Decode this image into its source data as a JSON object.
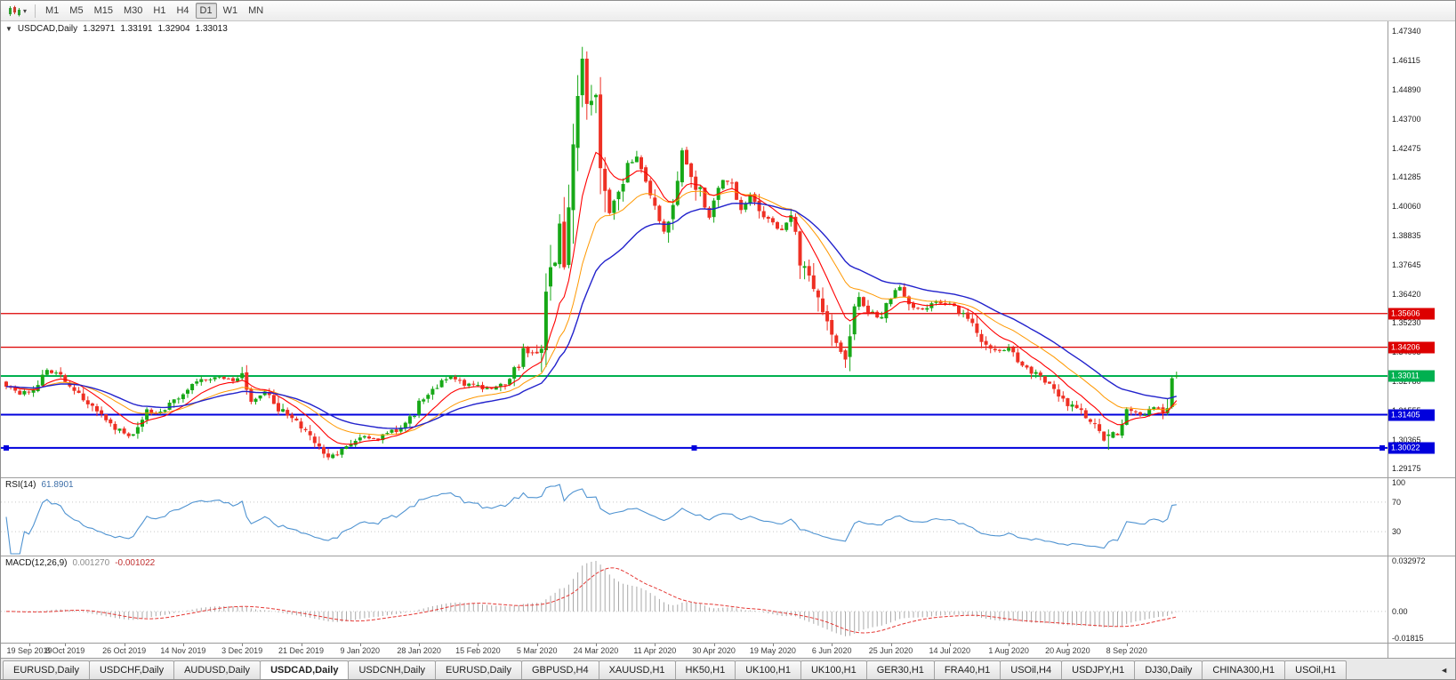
{
  "toolbar": {
    "timeframes": [
      "M1",
      "M5",
      "M15",
      "M30",
      "H1",
      "H4",
      "D1",
      "W1",
      "MN"
    ],
    "active_timeframe": "D1"
  },
  "icons": {
    "one_click_trading": "▼",
    "dropdown_caret": "▾",
    "tab_scroll_left": "◄"
  },
  "chart": {
    "type": "candlestick",
    "symbol": "USDCAD,Daily",
    "ohlc": {
      "open": "1.32971",
      "high": "1.33191",
      "low": "1.32904",
      "close": "1.33013"
    },
    "price_range": {
      "min": 1.288,
      "max": 1.4775
    },
    "price_scale_labels": [
      "1.47340",
      "1.46115",
      "1.44890",
      "1.43700",
      "1.42475",
      "1.41285",
      "1.40060",
      "1.38835",
      "1.37645",
      "1.36420",
      "1.35230",
      "1.34005",
      "1.32780",
      "1.31555",
      "1.30365",
      "1.29175"
    ],
    "hlines": [
      {
        "price": 1.35606,
        "label": "1.35606",
        "color": "#dd0000",
        "width": 1.3
      },
      {
        "price": 1.34206,
        "label": "1.34206",
        "color": "#dd0000",
        "width": 1.3
      },
      {
        "price": 1.33011,
        "label": "1.33011",
        "color": "#00b050",
        "width": 2
      },
      {
        "price": 1.31405,
        "label": "1.31405",
        "color": "#0000dd",
        "width": 2
      },
      {
        "price": 1.30022,
        "label": "1.30022",
        "color": "#0000dd",
        "width": 2,
        "selected": true
      }
    ],
    "date_labels": [
      "19 Sep 2019",
      "8 Oct 2019",
      "26 Oct 2019",
      "14 Nov 2019",
      "3 Dec 2019",
      "21 Dec 2019",
      "9 Jan 2020",
      "28 Jan 2020",
      "15 Feb 2020",
      "5 Mar 2020",
      "24 Mar 2020",
      "11 Apr 2020",
      "30 Apr 2020",
      "19 May 2020",
      "6 Jun 2020",
      "25 Jun 2020",
      "14 Jul 2020",
      "1 Aug 2020",
      "20 Aug 2020",
      "8 Sep 2020"
    ],
    "label_every_n_candles": 13,
    "candle_count": 259,
    "anchors": [
      [
        0,
        1.3262
      ],
      [
        3,
        1.3228
      ],
      [
        6,
        1.3248
      ],
      [
        9,
        1.3325
      ],
      [
        12,
        1.3308
      ],
      [
        16,
        1.323
      ],
      [
        20,
        1.315
      ],
      [
        24,
        1.3085
      ],
      [
        27,
        1.3048
      ],
      [
        29,
        1.3092
      ],
      [
        31,
        1.3168
      ],
      [
        33,
        1.314
      ],
      [
        36,
        1.3185
      ],
      [
        39,
        1.3235
      ],
      [
        43,
        1.3285
      ],
      [
        47,
        1.3302
      ],
      [
        50,
        1.3282
      ],
      [
        52,
        1.3312
      ],
      [
        54,
        1.3185
      ],
      [
        57,
        1.3235
      ],
      [
        60,
        1.3165
      ],
      [
        63,
        1.3128
      ],
      [
        66,
        1.3078
      ],
      [
        69,
        1.2995
      ],
      [
        71,
        1.2962
      ],
      [
        74,
        1.2988
      ],
      [
        78,
        1.3048
      ],
      [
        82,
        1.3042
      ],
      [
        86,
        1.3078
      ],
      [
        89,
        1.3122
      ],
      [
        91,
        1.3182
      ],
      [
        94,
        1.3252
      ],
      [
        98,
        1.3298
      ],
      [
        101,
        1.3268
      ],
      [
        104,
        1.3258
      ],
      [
        107,
        1.3242
      ],
      [
        110,
        1.3278
      ],
      [
        113,
        1.3348
      ],
      [
        114,
        1.3402
      ],
      [
        115,
        1.3382
      ],
      [
        117,
        1.3428
      ],
      [
        118,
        1.3458
      ],
      [
        119,
        1.3672
      ],
      [
        120,
        1.3742
      ],
      [
        121,
        1.3788
      ],
      [
        122,
        1.3925
      ],
      [
        123,
        1.3802
      ],
      [
        124,
        1.3988
      ],
      [
        125,
        1.4228
      ],
      [
        126,
        1.4492
      ],
      [
        127,
        1.462
      ],
      [
        128,
        1.4432
      ],
      [
        129,
        1.4455
      ],
      [
        130,
        1.444
      ],
      [
        131,
        1.4188
      ],
      [
        132,
        1.4032
      ],
      [
        133,
        1.3992
      ],
      [
        135,
        1.4068
      ],
      [
        137,
        1.4172
      ],
      [
        139,
        1.4198
      ],
      [
        141,
        1.4088
      ],
      [
        143,
        1.4022
      ],
      [
        145,
        1.3902
      ],
      [
        147,
        1.4012
      ],
      [
        149,
        1.4222
      ],
      [
        151,
        1.4128
      ],
      [
        153,
        1.4062
      ],
      [
        155,
        1.3962
      ],
      [
        156,
        1.4042
      ],
      [
        158,
        1.4122
      ],
      [
        160,
        1.4088
      ],
      [
        162,
        1.3988
      ],
      [
        164,
        1.4052
      ],
      [
        166,
        1.3978
      ],
      [
        169,
        1.3928
      ],
      [
        171,
        1.3898
      ],
      [
        173,
        1.3988
      ],
      [
        175,
        1.3782
      ],
      [
        177,
        1.3742
      ],
      [
        179,
        1.3622
      ],
      [
        181,
        1.3512
      ],
      [
        183,
        1.3422
      ],
      [
        185,
        1.3368
      ],
      [
        186,
        1.3492
      ],
      [
        188,
        1.3622
      ],
      [
        190,
        1.3565
      ],
      [
        193,
        1.3538
      ],
      [
        195,
        1.3635
      ],
      [
        197,
        1.3665
      ],
      [
        199,
        1.3598
      ],
      [
        202,
        1.3572
      ],
      [
        205,
        1.3612
      ],
      [
        208,
        1.3595
      ],
      [
        211,
        1.3562
      ],
      [
        213,
        1.3518
      ],
      [
        215,
        1.3455
      ],
      [
        218,
        1.3402
      ],
      [
        221,
        1.3412
      ],
      [
        223,
        1.3372
      ],
      [
        226,
        1.3322
      ],
      [
        229,
        1.3282
      ],
      [
        232,
        1.3228
      ],
      [
        234,
        1.3182
      ],
      [
        237,
        1.3152
      ],
      [
        240,
        1.3098
      ],
      [
        242,
        1.3042
      ],
      [
        244,
        1.3058
      ],
      [
        246,
        1.3082
      ],
      [
        247,
        1.3175
      ],
      [
        249,
        1.3148
      ],
      [
        251,
        1.3142
      ],
      [
        253,
        1.3172
      ],
      [
        255,
        1.3162
      ],
      [
        256,
        1.3185
      ],
      [
        257,
        1.3292
      ],
      [
        258,
        1.33013
      ]
    ],
    "key_candles": [
      {
        "i": 71,
        "o": 1.2979,
        "h": 1.2999,
        "l": 1.2952,
        "c": 1.2963
      },
      {
        "i": 127,
        "o": 1.4468,
        "h": 1.4669,
        "l": 1.4418,
        "c": 1.462
      },
      {
        "i": 128,
        "o": 1.462,
        "h": 1.465,
        "l": 1.4366,
        "c": 1.4432
      },
      {
        "i": 243,
        "o": 1.3052,
        "h": 1.3079,
        "l": 1.2994,
        "c": 1.3058
      },
      {
        "i": 257,
        "o": 1.3172,
        "h": 1.3302,
        "l": 1.3165,
        "c": 1.3292
      },
      {
        "i": 258,
        "o": 1.32971,
        "h": 1.33191,
        "l": 1.32904,
        "c": 1.33013
      }
    ],
    "moving_averages": [
      {
        "period": 21,
        "color": "#ff9800",
        "width": 1
      },
      {
        "period": 10,
        "color": "#ff0000",
        "width": 1.1
      },
      {
        "period": 34,
        "color": "#2222cc",
        "width": 1.4
      }
    ],
    "colors": {
      "bull": "#17a817",
      "bear": "#ee3024"
    }
  },
  "rsi": {
    "label": "RSI(14)",
    "value": "61.8901",
    "period": 14,
    "color": "#4f93d1",
    "levels": [
      {
        "label": "100",
        "value": 100
      },
      {
        "label": "70",
        "value": 70
      },
      {
        "label": "30",
        "value": 30
      }
    ],
    "level_line_values": [
      70,
      30
    ]
  },
  "macd": {
    "label": "MACD(12,26,9)",
    "value_main": "0.001270",
    "value_signal": "-0.001022",
    "fast": 12,
    "slow": 26,
    "signal": 9,
    "range": {
      "min": -0.0185,
      "max": 0.0335
    },
    "scale_labels": [
      {
        "label": "0.032972",
        "value": 0.032972
      },
      {
        "label": "0.00",
        "value": 0
      },
      {
        "label": "-0.01815",
        "value": -0.01815
      }
    ],
    "hist_color": "#a9a9a9",
    "signal_color": "#e53935"
  },
  "tabs": {
    "items": [
      "EURUSD,Daily",
      "USDCHF,Daily",
      "AUDUSD,Daily",
      "USDCAD,Daily",
      "USDCNH,Daily",
      "EURUSD,Daily",
      "GBPUSD,H4",
      "XAUUSD,H1",
      "HK50,H1",
      "UK100,H1",
      "UK100,H1",
      "GER30,H1",
      "FRA40,H1",
      "USOil,H4",
      "USDJPY,H1",
      "DJ30,Daily",
      "CHINA300,H1",
      "USOil,H1"
    ],
    "active_index": 3
  }
}
